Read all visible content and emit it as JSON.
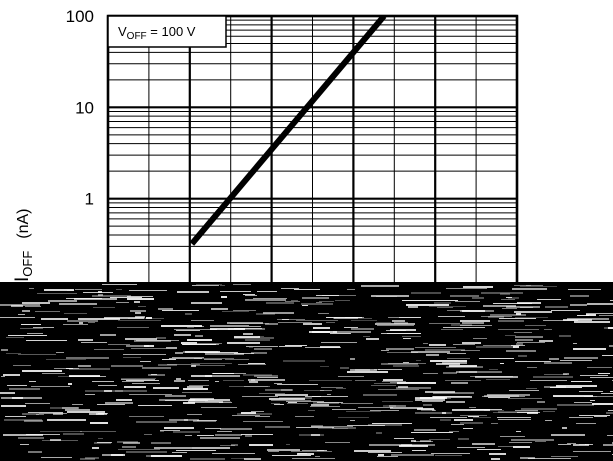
{
  "chart_data": {
    "type": "line",
    "title": "",
    "annotation": {
      "main": "V",
      "sub": "OFF",
      "rest": " = 100 V"
    },
    "ylabel": {
      "main": "I",
      "sub": "OFF",
      "unit": "(nA)"
    },
    "yscale": "log",
    "ylim": [
      0.1,
      100
    ],
    "y_ticks": [
      {
        "value": 100,
        "label": "100"
      },
      {
        "value": 10,
        "label": "10"
      },
      {
        "value": 1,
        "label": "1"
      }
    ],
    "xlim": [
      0,
      10
    ],
    "x_major_gridlines": [
      0,
      1,
      2,
      3,
      4,
      5,
      6,
      7,
      8,
      9,
      10
    ],
    "grid": true,
    "series": [
      {
        "name": "",
        "x": [
          2.05,
          6.75
        ],
        "y": [
          0.32,
          100
        ],
        "color": "#000000"
      }
    ],
    "x_tick_labels_visible": false,
    "bottom_region": "obscured by noise"
  }
}
